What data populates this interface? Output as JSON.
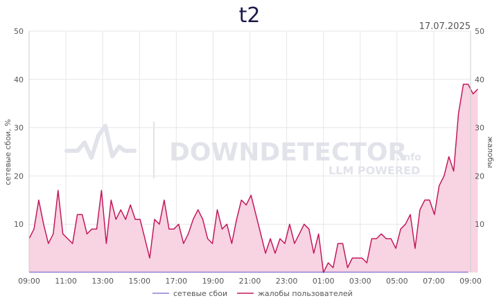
{
  "chart_data": {
    "type": "line",
    "title": "t2",
    "date": "17.07.2025",
    "ylabel_left": "сетевые сбои, %",
    "ylabel_right": "жалобы",
    "ylim": [
      0,
      50
    ],
    "y_ticks": [
      "10",
      "20",
      "30",
      "40",
      "50"
    ],
    "x_ticks": [
      "09:00",
      "11:00",
      "13:00",
      "15:00",
      "17:00",
      "19:00",
      "21:00",
      "23:00",
      "01:00",
      "03:00",
      "05:00",
      "07:00",
      "09:00"
    ],
    "x_range_hours": [
      0,
      24
    ],
    "grid": true,
    "legend_position": "bottom",
    "watermark": {
      "main": "DOWNDETECTOR",
      "suffix": ".info",
      "sub": "LLM POWERED"
    },
    "colors": {
      "network": "#8b7fd4",
      "complaints": "#c2185b",
      "complaints_fill": "#f8d3e1",
      "grid": "#e6e6e6",
      "axis": "#cccccc",
      "title": "#1b1b4b"
    },
    "series": [
      {
        "name": "сетевые сбои",
        "values": [
          0,
          0,
          0,
          0,
          0,
          0,
          0,
          0,
          0,
          0,
          0,
          0,
          0,
          0,
          0,
          0,
          0,
          0,
          0,
          0,
          0,
          0,
          0,
          0,
          0,
          0,
          0,
          0,
          0,
          0,
          0,
          0,
          0,
          0,
          0,
          0,
          0,
          0,
          0,
          0,
          0,
          0,
          0,
          0,
          0,
          0,
          0,
          0,
          0,
          0,
          0,
          0,
          0,
          0,
          0,
          0,
          0,
          0,
          0,
          0,
          0,
          0,
          0,
          0,
          0,
          0,
          0,
          0,
          0,
          0,
          0,
          0,
          0,
          0,
          0,
          0,
          0,
          0,
          0,
          0,
          0,
          0,
          0,
          0,
          0,
          0,
          0,
          0,
          0,
          0,
          0,
          0
        ]
      },
      {
        "name": "жалобы пользователей",
        "values": [
          7,
          9,
          15,
          10,
          6,
          8,
          17,
          8,
          7,
          6,
          12,
          12,
          8,
          9,
          9,
          17,
          6,
          15,
          11,
          13,
          11,
          14,
          11,
          11,
          7,
          3,
          11,
          10,
          15,
          9,
          9,
          10,
          6,
          8,
          11,
          13,
          11,
          7,
          6,
          13,
          9,
          10,
          6,
          11,
          15,
          14,
          16,
          12,
          8,
          4,
          7,
          4,
          7,
          6,
          10,
          6,
          8,
          10,
          9,
          4,
          8,
          0,
          2,
          1,
          6,
          6,
          1,
          3,
          3,
          3,
          2,
          7,
          7,
          8,
          7,
          7,
          5,
          9,
          10,
          12,
          5,
          13,
          15,
          15,
          12,
          18,
          20,
          24,
          21,
          33,
          39,
          39,
          37,
          38
        ]
      }
    ]
  }
}
